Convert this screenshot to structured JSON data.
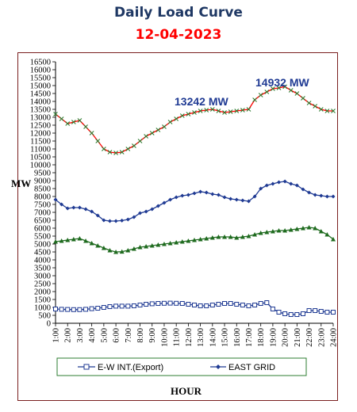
{
  "header": {
    "title": "Daily Load Curve",
    "date": "12-04-2023"
  },
  "chart_data": {
    "type": "line",
    "title": "Daily Load Curve",
    "subtitle": "12-04-2023",
    "xlabel": "HOUR",
    "ylabel": "MW",
    "ylim": [
      0,
      16500
    ],
    "y_ticks": [
      "0",
      "500",
      "1000",
      "1500",
      "2000",
      "2500",
      "3000",
      "3500",
      "4000",
      "4500",
      "5000",
      "5500",
      "6000",
      "6500",
      "7000",
      "7500",
      "8000",
      "8500",
      "9000",
      "9500",
      "10000",
      "10500",
      "11000",
      "11500",
      "12000",
      "12500",
      "13000",
      "13500",
      "14000",
      "14500",
      "15000",
      "15500",
      "16000",
      "16500"
    ],
    "x_ticks": [
      "1:00",
      "2:00",
      "3:00",
      "4:00",
      "5:00",
      "6:00",
      "7:00",
      "8:00",
      "9:00",
      "10:00",
      "11:00",
      "12:00",
      "13:00",
      "14:00",
      "15:00",
      "16:00",
      "17:00",
      "18:00",
      "19:00",
      "20:00",
      "21:00",
      "22:00",
      "23:00",
      "24:00"
    ],
    "x": [
      1,
      1.5,
      2,
      2.5,
      3,
      3.5,
      4,
      4.5,
      5,
      5.5,
      6,
      6.5,
      7,
      7.5,
      8,
      8.5,
      9,
      9.5,
      10,
      10.5,
      11,
      11.5,
      12,
      12.5,
      13,
      13.5,
      14,
      14.5,
      15,
      15.5,
      16,
      16.5,
      17,
      17.5,
      18,
      18.5,
      19,
      19.5,
      20,
      20.5,
      21,
      21.5,
      22,
      22.5,
      23,
      23.5,
      24
    ],
    "grid": false,
    "legend_position": "bottom",
    "series": [
      {
        "name": "E-W INT.(Export)",
        "color": "#1f3a93",
        "marker": "square",
        "values": [
          900,
          880,
          870,
          860,
          860,
          880,
          920,
          950,
          1000,
          1050,
          1080,
          1080,
          1080,
          1100,
          1150,
          1200,
          1230,
          1250,
          1260,
          1270,
          1260,
          1250,
          1200,
          1150,
          1100,
          1100,
          1150,
          1200,
          1250,
          1250,
          1200,
          1150,
          1100,
          1150,
          1250,
          1300,
          900,
          700,
          600,
          550,
          550,
          600,
          800,
          800,
          750,
          700,
          700
        ]
      },
      {
        "name": "EAST GRID",
        "color": "#1f3a93",
        "marker": "diamond",
        "values": [
          7800,
          7500,
          7250,
          7300,
          7300,
          7200,
          7050,
          6800,
          6500,
          6450,
          6450,
          6480,
          6550,
          6700,
          6950,
          7050,
          7200,
          7400,
          7600,
          7800,
          7950,
          8050,
          8100,
          8200,
          8300,
          8250,
          8150,
          8100,
          7950,
          7850,
          7800,
          7750,
          7700,
          8000,
          8500,
          8700,
          8800,
          8900,
          8950,
          8800,
          8700,
          8450,
          8250,
          8100,
          8050,
          8000,
          8000
        ]
      },
      {
        "name": "",
        "color": "#1f6b1f",
        "marker": "triangle",
        "values": [
          5150,
          5200,
          5250,
          5300,
          5350,
          5200,
          5050,
          4900,
          4750,
          4600,
          4500,
          4520,
          4600,
          4700,
          4800,
          4850,
          4900,
          4950,
          5000,
          5050,
          5100,
          5150,
          5200,
          5250,
          5300,
          5350,
          5400,
          5450,
          5450,
          5450,
          5400,
          5450,
          5500,
          5600,
          5700,
          5750,
          5800,
          5850,
          5850,
          5900,
          5950,
          6000,
          6050,
          6000,
          5800,
          5600,
          5300
        ]
      },
      {
        "name": "",
        "color": "#ff0000",
        "marker": "x",
        "values": [
          13200,
          12900,
          12600,
          12700,
          12800,
          12400,
          12000,
          11500,
          11000,
          10800,
          10750,
          10800,
          11000,
          11200,
          11500,
          11800,
          12000,
          12200,
          12400,
          12700,
          12900,
          13100,
          13200,
          13300,
          13400,
          13450,
          13500,
          13400,
          13300,
          13350,
          13400,
          13450,
          13500,
          14100,
          14400,
          14600,
          14800,
          14850,
          14932,
          14700,
          14500,
          14200,
          13900,
          13700,
          13500,
          13400,
          13400
        ]
      }
    ],
    "annotations": [
      "13242 MW",
      "14932 MW"
    ]
  }
}
